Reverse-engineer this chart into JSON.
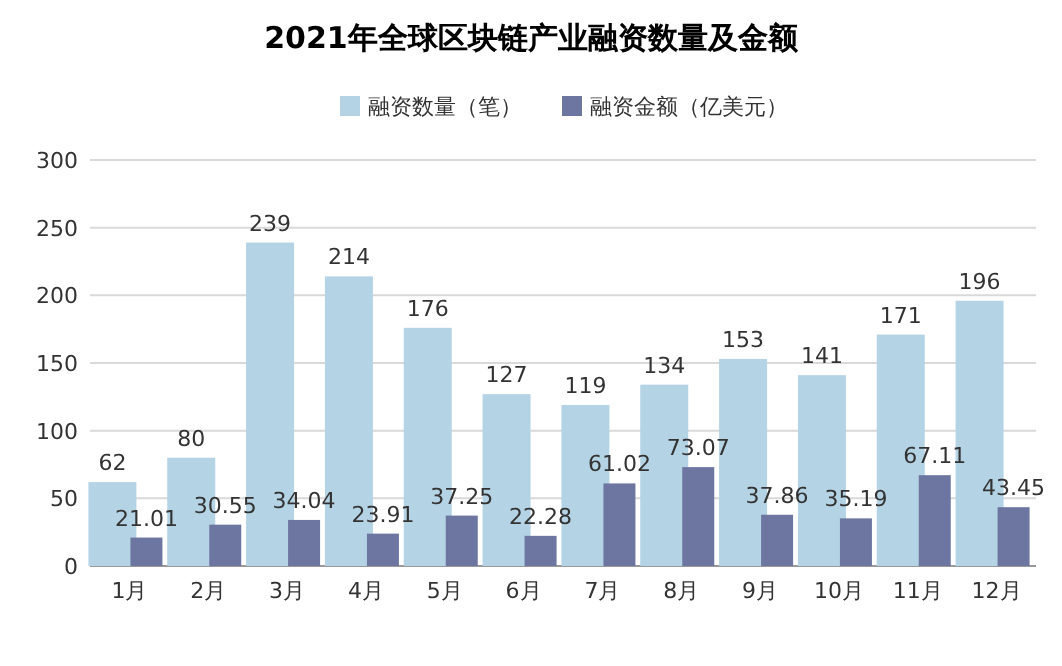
{
  "chart_data": {
    "type": "bar",
    "title": "2021年全球区块链产业融资数量及金额",
    "categories": [
      "1月",
      "2月",
      "3月",
      "4月",
      "5月",
      "6月",
      "7月",
      "8月",
      "9月",
      "10月",
      "11月",
      "12月"
    ],
    "series": [
      {
        "name": "融资数量（笔）",
        "color": "#b4d3e5",
        "values": [
          62,
          80,
          239,
          214,
          176,
          127,
          119,
          134,
          153,
          141,
          171,
          196
        ]
      },
      {
        "name": "融资金额（亿美元）",
        "color": "#6c76a0",
        "values": [
          21.01,
          30.55,
          34.04,
          23.91,
          37.25,
          22.28,
          61.02,
          73.07,
          37.86,
          35.19,
          67.11,
          43.45
        ]
      }
    ],
    "ylim": [
      0,
      300
    ],
    "yticks": [
      0,
      50,
      100,
      150,
      200,
      250,
      300
    ],
    "grid": "y",
    "legend": "top",
    "data_labels": true
  }
}
